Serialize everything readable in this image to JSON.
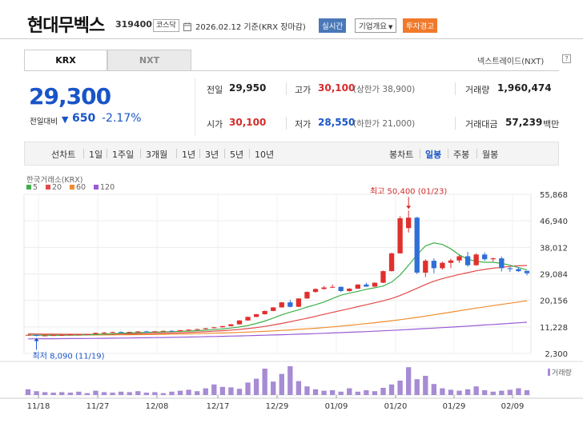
{
  "header": {
    "title": "현대무벡스",
    "code": "319400",
    "market": "코스닥",
    "date": "2026.02.12 기준(KRX 장마감)",
    "btn_live": "실시간",
    "btn_info": "기업개요",
    "btn_warn": "투자경고"
  },
  "tabs": {
    "krx": "KRX",
    "nxt": "NXT",
    "nxt_link": "넥스트레이드(NXT)"
  },
  "price": {
    "current": "29,300",
    "change_label": "전일대비",
    "change_value": "650",
    "change_pct": "-2.17%"
  },
  "stats": {
    "prev_label": "전일",
    "prev_value": "29,950",
    "open_label": "시가",
    "open_value": "30,100",
    "high_label": "고가",
    "high_value": "30,100",
    "high_sub": "(상한가 38,900)",
    "low_label": "저가",
    "low_value": "28,550",
    "low_sub": "(하한가 21,000)",
    "vol_label": "거래량",
    "vol_value": "1,960,474",
    "amt_label": "거래대금",
    "amt_value": "57,239",
    "amt_unit": "백만"
  },
  "periods": {
    "line_label": "선차트",
    "line_items": [
      "1일",
      "1주일",
      "3개월",
      "1년",
      "3년",
      "5년",
      "10년"
    ],
    "candle_label": "봉차트",
    "candle_items": [
      "일봉",
      "주봉",
      "월봉"
    ],
    "active": "일봉"
  },
  "colors": {
    "up": "#e0302e",
    "down": "#2f6fd6",
    "ma5": "#3fb04b",
    "ma20": "#e24a4a",
    "ma60": "#f08c2e",
    "ma120": "#9a5bd4"
  },
  "chart_data": {
    "type": "candlestick",
    "source_label": "한국거래소(KRX)",
    "legend": [
      "5",
      "20",
      "60",
      "120"
    ],
    "y_ticks": [
      "55,868",
      "46,940",
      "38,012",
      "29,084",
      "20,156",
      "11,228",
      "2,300"
    ],
    "ylim": [
      2300,
      55868
    ],
    "x_ticks": [
      "11/18",
      "11/27",
      "12/08",
      "12/17",
      "12/29",
      "01/09",
      "01/20",
      "01/29",
      "02/09"
    ],
    "annotations": {
      "high": "최고 50,400 (01/23)",
      "low": "최저 8,090 (11/19)"
    },
    "volume_label": "거래량",
    "candles": [
      [
        8500,
        8600,
        8400,
        8550
      ],
      [
        8550,
        8600,
        8090,
        8200
      ],
      [
        8200,
        8400,
        8150,
        8350
      ],
      [
        8350,
        8500,
        8300,
        8450
      ],
      [
        8450,
        8600,
        8400,
        8500
      ],
      [
        8500,
        8700,
        8450,
        8650
      ],
      [
        8650,
        8800,
        8550,
        8700
      ],
      [
        8700,
        8900,
        8600,
        8800
      ],
      [
        8800,
        9300,
        8750,
        9200
      ],
      [
        9200,
        9500,
        9100,
        9300
      ],
      [
        9300,
        9600,
        9200,
        9500
      ],
      [
        9500,
        9700,
        9300,
        9400
      ],
      [
        9400,
        9600,
        9300,
        9550
      ],
      [
        9550,
        9800,
        9450,
        9700
      ],
      [
        9700,
        9900,
        9600,
        9650
      ],
      [
        9650,
        9800,
        9500,
        9750
      ],
      [
        9750,
        10000,
        9700,
        9900
      ],
      [
        9900,
        10100,
        9800,
        9850
      ],
      [
        9850,
        10200,
        9800,
        10100
      ],
      [
        10100,
        10400,
        10000,
        10300
      ],
      [
        10300,
        10600,
        10200,
        10500
      ],
      [
        10500,
        10900,
        10400,
        10800
      ],
      [
        10800,
        11200,
        10700,
        11100
      ],
      [
        11100,
        11600,
        11000,
        11500
      ],
      [
        11500,
        12200,
        11400,
        12100
      ],
      [
        12100,
        13500,
        12000,
        13400
      ],
      [
        13400,
        14700,
        13300,
        14600
      ],
      [
        14600,
        15600,
        14500,
        15500
      ],
      [
        15500,
        16700,
        15400,
        16600
      ],
      [
        16600,
        17900,
        16500,
        17800
      ],
      [
        17800,
        19600,
        17700,
        19500
      ],
      [
        19500,
        20300,
        17800,
        18000
      ],
      [
        18000,
        20900,
        17900,
        20800
      ],
      [
        20800,
        23200,
        20700,
        23000
      ],
      [
        23000,
        24200,
        22700,
        24000
      ],
      [
        24000,
        25000,
        23800,
        24500
      ],
      [
        24500,
        25500,
        24300,
        24700
      ],
      [
        24700,
        24900,
        23000,
        23300
      ],
      [
        23300,
        24300,
        23100,
        24100
      ],
      [
        24100,
        25600,
        24000,
        25500
      ],
      [
        25500,
        26100,
        24700,
        24800
      ],
      [
        24800,
        26200,
        24700,
        26100
      ],
      [
        26100,
        30200,
        26000,
        30000
      ],
      [
        30000,
        36200,
        29900,
        36000
      ],
      [
        36000,
        48500,
        35900,
        47800
      ],
      [
        44500,
        50400,
        43000,
        48000
      ],
      [
        48000,
        48300,
        29000,
        29500
      ],
      [
        29500,
        34000,
        28000,
        33500
      ],
      [
        33500,
        34300,
        29300,
        31000
      ],
      [
        31000,
        33200,
        30500,
        32800
      ],
      [
        32800,
        34200,
        31000,
        33600
      ],
      [
        33600,
        35500,
        32800,
        35000
      ],
      [
        35000,
        36500,
        31500,
        32000
      ],
      [
        32000,
        36000,
        31800,
        35600
      ],
      [
        35600,
        36300,
        33500,
        34000
      ],
      [
        34000,
        34600,
        33200,
        34300
      ],
      [
        34300,
        34900,
        29900,
        31000
      ],
      [
        31000,
        31400,
        29700,
        30700
      ],
      [
        30700,
        31300,
        29700,
        30000
      ],
      [
        30100,
        30100,
        28550,
        29300
      ]
    ],
    "volume": [
      12,
      8,
      6,
      5,
      6,
      5,
      7,
      4,
      9,
      6,
      5,
      7,
      6,
      8,
      5,
      6,
      4,
      7,
      9,
      11,
      8,
      14,
      22,
      17,
      16,
      13,
      26,
      34,
      55,
      28,
      44,
      60,
      29,
      18,
      12,
      9,
      10,
      7,
      14,
      7,
      10,
      8,
      15,
      22,
      30,
      58,
      33,
      40,
      23,
      14,
      11,
      9,
      12,
      18,
      10,
      7,
      9,
      11,
      14,
      10
    ],
    "ma5": [
      8500,
      8450,
      8400,
      8380,
      8400,
      8430,
      8500,
      8550,
      8650,
      8780,
      8950,
      9100,
      9200,
      9300,
      9400,
      9450,
      9550,
      9650,
      9750,
      9850,
      9980,
      10120,
      10300,
      10550,
      10850,
      11200,
      11700,
      12400,
      13200,
      14200,
      15300,
      16200,
      17000,
      17900,
      18700,
      19600,
      20800,
      21900,
      22600,
      23200,
      23900,
      24400,
      25000,
      26300,
      28700,
      32000,
      35500,
      38500,
      39500,
      39000,
      37500,
      35500,
      34000,
      33300,
      33000,
      33000,
      32600,
      32000,
      31200,
      30400
    ],
    "ma20": [
      8900,
      8850,
      8800,
      8780,
      8760,
      8750,
      8740,
      8730,
      8740,
      8760,
      8790,
      8830,
      8870,
      8920,
      8980,
      9040,
      9110,
      9190,
      9280,
      9380,
      9490,
      9620,
      9780,
      9950,
      10150,
      10380,
      10660,
      11000,
      11400,
      11880,
      12400,
      12950,
      13550,
      14150,
      14800,
      15450,
      16100,
      16750,
      17400,
      18050,
      18700,
      19350,
      20000,
      20800,
      21800,
      23000,
      24200,
      25500,
      26600,
      27500,
      28200,
      28900,
      29500,
      30100,
      30600,
      31000,
      31300,
      31600,
      31800,
      31900
    ],
    "ma60": [
      8500,
      8500,
      8500,
      8500,
      8500,
      8500,
      8500,
      8510,
      8520,
      8530,
      8550,
      8570,
      8590,
      8620,
      8650,
      8690,
      8730,
      8780,
      8830,
      8890,
      8950,
      9020,
      9100,
      9190,
      9280,
      9380,
      9490,
      9610,
      9740,
      9880,
      10040,
      10210,
      10390,
      10580,
      10780,
      11000,
      11240,
      11500,
      11760,
      12040,
      12330,
      12640,
      12960,
      13300,
      13660,
      14040,
      14440,
      14860,
      15300,
      15760,
      16200,
      16650,
      17100,
      17550,
      17980,
      18400,
      18800,
      19200,
      19600,
      20000
    ],
    "ma120": [
      7200,
      7220,
      7240,
      7260,
      7280,
      7300,
      7320,
      7340,
      7370,
      7400,
      7430,
      7460,
      7500,
      7540,
      7580,
      7620,
      7670,
      7720,
      7770,
      7820,
      7880,
      7940,
      8000,
      8060,
      8130,
      8200,
      8270,
      8350,
      8430,
      8510,
      8600,
      8690,
      8780,
      8880,
      8980,
      9080,
      9190,
      9300,
      9420,
      9540,
      9660,
      9790,
      9920,
      10060,
      10200,
      10350,
      10500,
      10660,
      10820,
      10990,
      11160,
      11330,
      11510,
      11690,
      11870,
      12050,
      12240,
      12430,
      12620,
      12810
    ]
  }
}
